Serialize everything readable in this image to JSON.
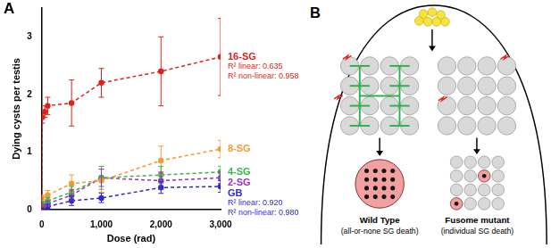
{
  "chart_data": {
    "type": "scatter",
    "panel_label": "A",
    "x_label": "Dose (rad)",
    "y_label": "Dying cysts per testis",
    "xlim": [
      0,
      3000
    ],
    "xticks": [
      0,
      1000,
      2000,
      3000
    ],
    "ylim": [
      0,
      3.5
    ],
    "yticks": [
      0,
      1,
      2,
      3
    ],
    "grid": false,
    "marker": "circle",
    "line_style": "dashed",
    "series": [
      {
        "name": "16-SG",
        "color": "#e0201b",
        "x": [
          0,
          10,
          50,
          100,
          500,
          1000,
          2000,
          3000
        ],
        "values": [
          0.05,
          1.6,
          1.7,
          1.8,
          1.85,
          2.2,
          2.4,
          2.65
        ],
        "errors": [
          0.02,
          0.1,
          0.1,
          0.15,
          0.4,
          0.25,
          0.6,
          0.67
        ]
      },
      {
        "name": "8-SG",
        "color": "#f39c34",
        "x": [
          0,
          100,
          500,
          1000,
          2000,
          3000
        ],
        "values": [
          0.2,
          0.25,
          0.45,
          0.5,
          0.85,
          1.05
        ],
        "errors": [
          0.05,
          0.08,
          0.15,
          0.2,
          0.25,
          0.15
        ]
      },
      {
        "name": "4-SG",
        "color": "#3ab54a",
        "x": [
          0,
          100,
          500,
          1000,
          2000,
          3000
        ],
        "values": [
          0.1,
          0.15,
          0.3,
          0.55,
          0.6,
          0.65
        ],
        "errors": [
          0.04,
          0.06,
          0.1,
          0.2,
          0.15,
          0.1
        ]
      },
      {
        "name": "2-SG",
        "color": "#9b30c6",
        "x": [
          0,
          100,
          500,
          1000,
          2000,
          3000
        ],
        "values": [
          0.05,
          0.1,
          0.25,
          0.55,
          0.5,
          0.55
        ],
        "errors": [
          0.03,
          0.05,
          0.1,
          0.15,
          0.15,
          0.1
        ]
      },
      {
        "name": "GB",
        "color": "#2a2ad0",
        "x": [
          0,
          100,
          500,
          1000,
          2000,
          3000
        ],
        "values": [
          0.0,
          0.05,
          0.15,
          0.2,
          0.38,
          0.4
        ],
        "errors": [
          0.02,
          0.04,
          0.08,
          0.08,
          0.1,
          0.1
        ]
      }
    ],
    "annotations": [
      {
        "series": "16-SG",
        "text": "R² linear: 0.635"
      },
      {
        "series": "16-SG",
        "text": "R² non-linear: 0.958"
      },
      {
        "series": "GB",
        "text": "R² linear: 0.920"
      },
      {
        "series": "GB",
        "text": "R² non-linear: 0.980"
      }
    ]
  },
  "diagram": {
    "panel_label": "B",
    "outcomes": [
      {
        "title": "Wild Type",
        "subtitle": "(all-or-none SG death)"
      },
      {
        "title": "Fusome mutant",
        "subtitle": "(individual SG death)"
      }
    ]
  }
}
